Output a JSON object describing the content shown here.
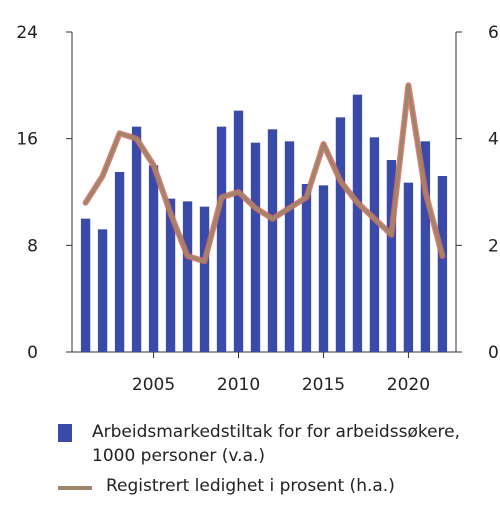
{
  "chart_data": {
    "type": "bar+line",
    "x": [
      2001,
      2002,
      2003,
      2004,
      2005,
      2006,
      2007,
      2008,
      2009,
      2010,
      2011,
      2012,
      2013,
      2014,
      2015,
      2016,
      2017,
      2018,
      2019,
      2020,
      2021,
      2022
    ],
    "xticks": [
      "2005",
      "2010",
      "2015",
      "2020"
    ],
    "xtick_values": [
      2005,
      2010,
      2015,
      2020
    ],
    "y_left_ticks": [
      "0",
      "8",
      "16",
      "24"
    ],
    "y_left_tick_values": [
      0,
      8,
      16,
      24
    ],
    "y_right_ticks": [
      "0",
      "2",
      "4",
      "6"
    ],
    "y_right_tick_values": [
      0,
      2,
      4,
      6
    ],
    "ylim_left": [
      0,
      24
    ],
    "ylim_right": [
      0,
      6
    ],
    "series": [
      {
        "name": "Arbeidsmarkedstiltak for for arbeidssøkere, 1000 personer (v.a.)",
        "type": "bar",
        "axis": "left",
        "color": "#3a4aa8",
        "values": [
          10.0,
          9.2,
          13.5,
          16.9,
          14.0,
          11.5,
          11.3,
          10.9,
          16.9,
          18.1,
          15.7,
          16.7,
          15.8,
          12.6,
          12.5,
          17.6,
          19.3,
          16.1,
          14.4,
          12.7,
          15.8,
          13.2
        ]
      },
      {
        "name": "Registrert ledighet i prosent (h.a.)",
        "type": "line",
        "axis": "right",
        "color": "#a0856a",
        "highlight_color": "#d9685f",
        "values": [
          2.8,
          3.3,
          4.1,
          4.0,
          3.5,
          2.6,
          1.8,
          1.7,
          2.9,
          3.0,
          2.7,
          2.5,
          2.7,
          2.9,
          3.9,
          3.2,
          2.8,
          2.5,
          2.2,
          5.0,
          3.0,
          1.8
        ]
      }
    ],
    "grid": false,
    "legend_position": "bottom"
  },
  "legend": {
    "bar_label_line1": "Arbeidsmarkedstiltak for for arbeidssøkere,",
    "bar_label_line2": "1000 personer (v.a.)",
    "line_label": "Registrert ledighet i prosent (h.a.)"
  }
}
